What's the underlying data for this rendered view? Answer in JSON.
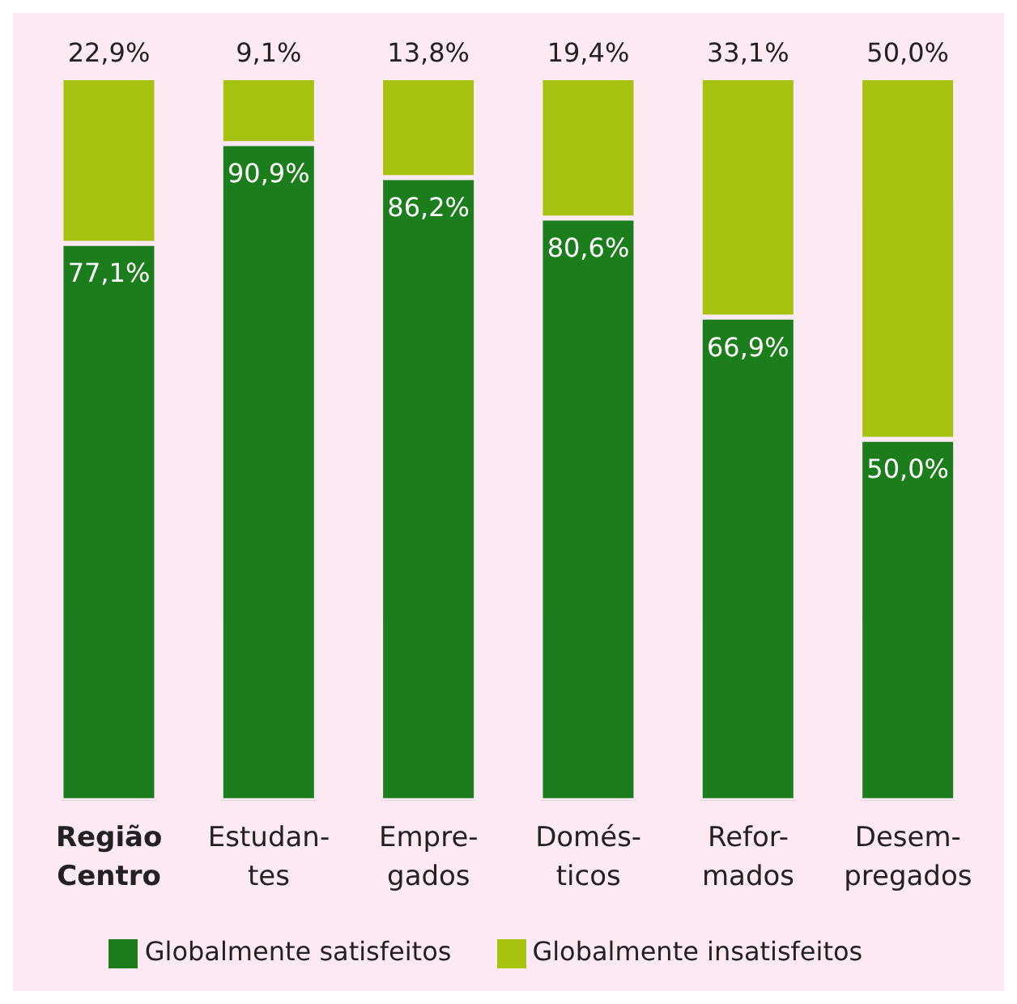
{
  "chart_data": {
    "type": "bar",
    "categories": [
      "Região\nCentro",
      "Estudan-\ntes",
      "Empre-\ngados",
      "Domés-\nticos",
      "Refor-\nmados",
      "Desem-\npregados"
    ],
    "series": [
      {
        "name": "Globalmente satisfeitos",
        "color": "#1b7d1b",
        "values": [
          77.1,
          90.9,
          86.2,
          80.6,
          66.9,
          50.0
        ],
        "value_labels": [
          "77,1%",
          "90,9%",
          "86,2%",
          "80,6%",
          "66,9%",
          "50,0%"
        ]
      },
      {
        "name": "Globalmente insatisfeitos",
        "color": "#a5c20e",
        "values": [
          22.9,
          9.1,
          13.8,
          19.4,
          33.1,
          50.0
        ],
        "value_labels": [
          "22,9%",
          "9,1%",
          "13,8%",
          "19,4%",
          "33,1%",
          "50,0%"
        ]
      }
    ],
    "stacked": true,
    "ylim": [
      0,
      100
    ],
    "tick_labels": "x",
    "legend": "bottom",
    "grid": false
  }
}
